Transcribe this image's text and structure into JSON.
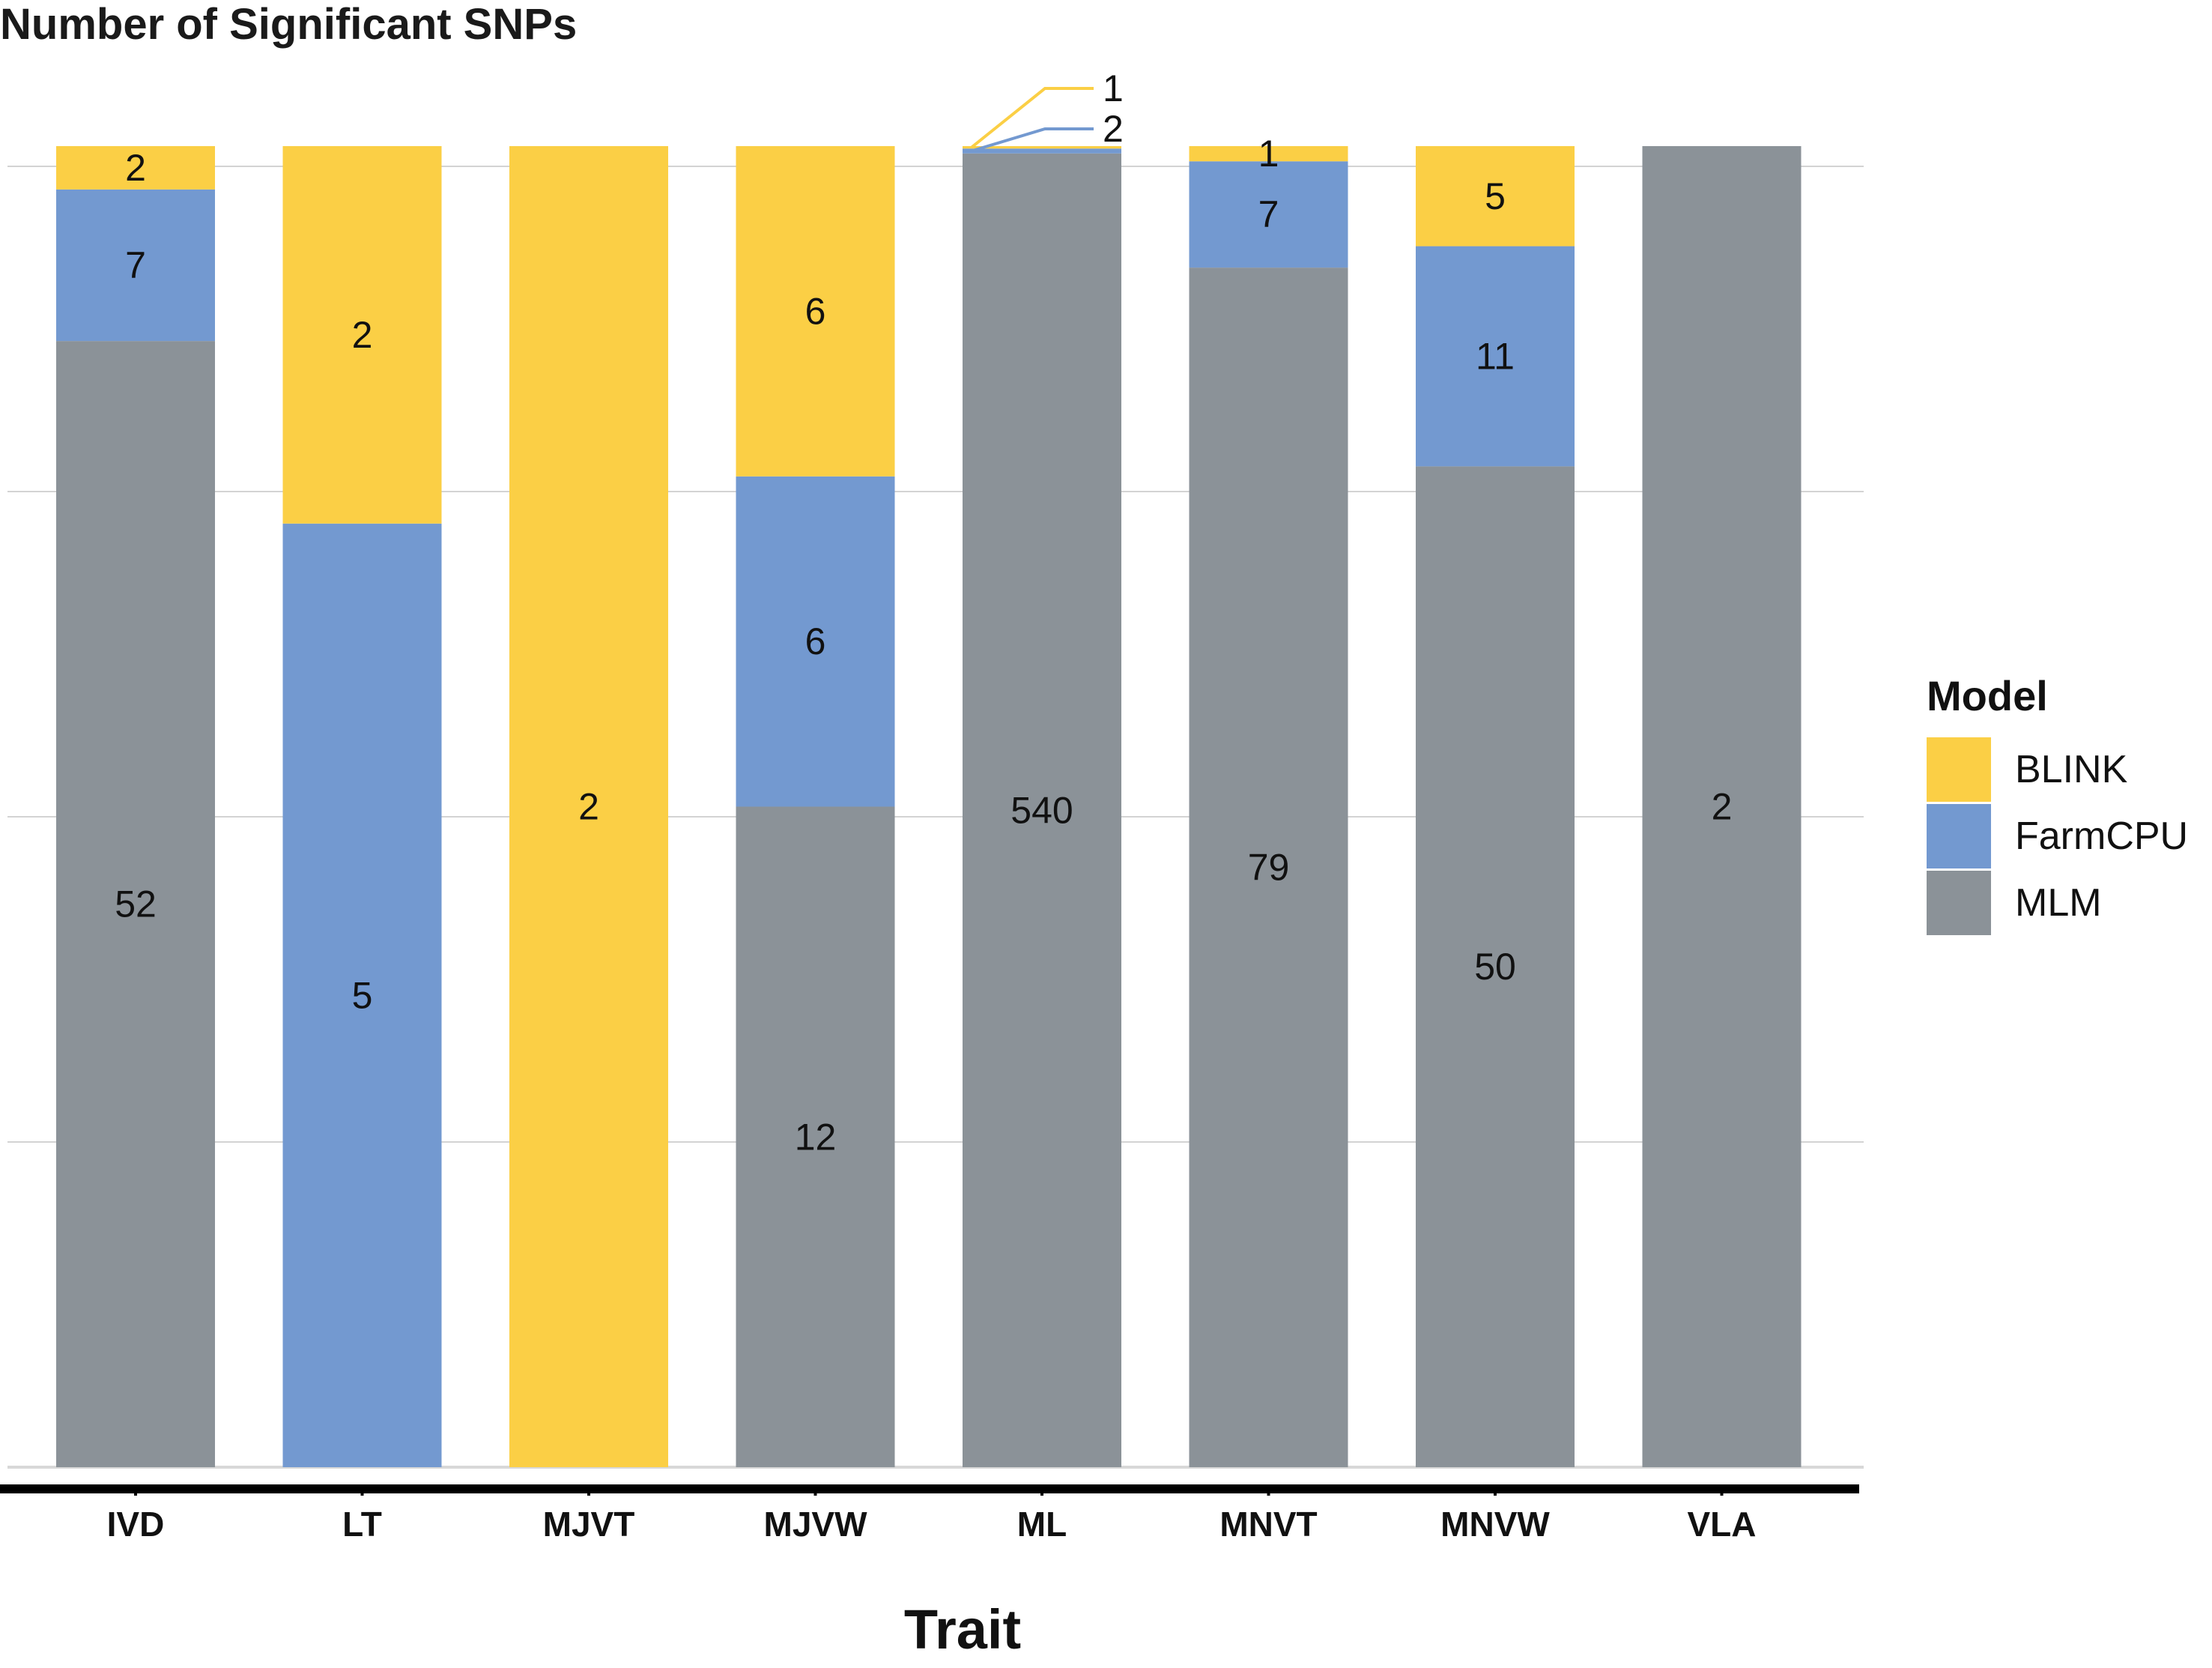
{
  "chart_data": {
    "type": "bar",
    "stacked": true,
    "normalized": true,
    "title": "Number of Significant SNPs",
    "xlabel": "Trait",
    "ylabel": "",
    "categories": [
      "IVD",
      "LT",
      "MJVT",
      "MJVW",
      "ML",
      "MNVT",
      "MNVW",
      "VLA"
    ],
    "series": [
      {
        "name": "MLM",
        "color": "#8b9298",
        "values": [
          52,
          0,
          0,
          12,
          540,
          79,
          50,
          2
        ]
      },
      {
        "name": "FarmCPU",
        "color": "#7399d0",
        "values": [
          7,
          5,
          0,
          6,
          2,
          7,
          11,
          0
        ]
      },
      {
        "name": "BLINK",
        "color": "#fbcf45",
        "values": [
          2,
          2,
          2,
          6,
          1,
          1,
          5,
          0
        ]
      }
    ],
    "callout_indices": [
      4
    ],
    "grid": true,
    "legend": {
      "title": "Model",
      "position": "right",
      "order": [
        "BLINK",
        "FarmCPU",
        "MLM"
      ]
    }
  }
}
